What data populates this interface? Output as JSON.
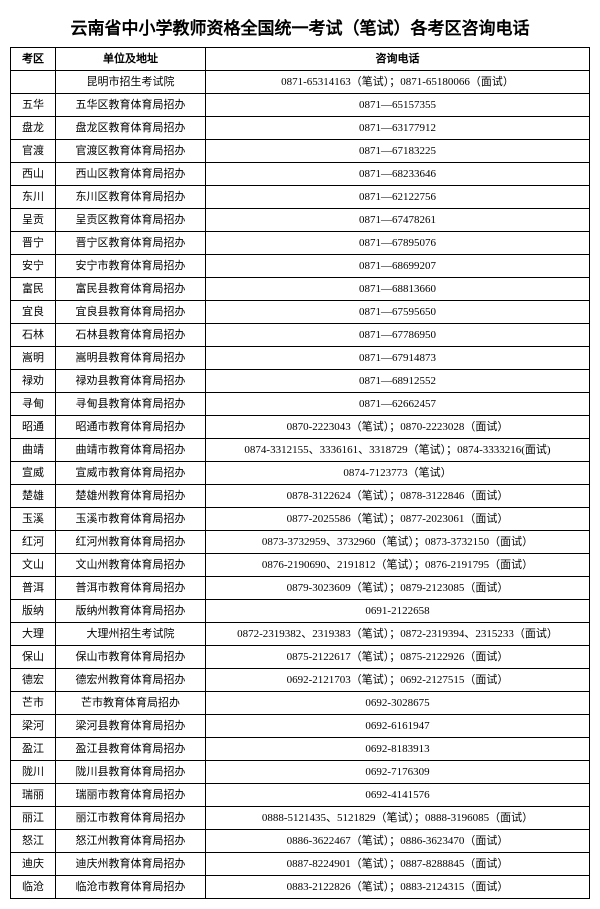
{
  "title": "云南省中小学教师资格全国统一考试（笔试）各考区咨询电话",
  "headers": {
    "col1": "考区",
    "col2": "单位及地址",
    "col3": "咨询电话"
  },
  "rows": [
    {
      "area": "",
      "unit": "昆明市招生考试院",
      "phone": "0871-65314163（笔试）；0871-65180066（面试）"
    },
    {
      "area": "五华",
      "unit": "五华区教育体育局招办",
      "phone": "0871—65157355"
    },
    {
      "area": "盘龙",
      "unit": "盘龙区教育体育局招办",
      "phone": "0871—63177912"
    },
    {
      "area": "官渡",
      "unit": "官渡区教育体育局招办",
      "phone": "0871—67183225"
    },
    {
      "area": "西山",
      "unit": "西山区教育体育局招办",
      "phone": "0871—68233646"
    },
    {
      "area": "东川",
      "unit": "东川区教育体育局招办",
      "phone": "0871—62122756"
    },
    {
      "area": "呈贡",
      "unit": "呈贡区教育体育局招办",
      "phone": "0871—67478261"
    },
    {
      "area": "晋宁",
      "unit": "晋宁区教育体育局招办",
      "phone": "0871—67895076"
    },
    {
      "area": "安宁",
      "unit": "安宁市教育体育局招办",
      "phone": "0871—68699207"
    },
    {
      "area": "富民",
      "unit": "富民县教育体育局招办",
      "phone": "0871—68813660"
    },
    {
      "area": "宜良",
      "unit": "宜良县教育体育局招办",
      "phone": "0871—67595650"
    },
    {
      "area": "石林",
      "unit": "石林县教育体育局招办",
      "phone": "0871—67786950"
    },
    {
      "area": "嵩明",
      "unit": "嵩明县教育体育局招办",
      "phone": "0871—67914873"
    },
    {
      "area": "禄劝",
      "unit": "禄劝县教育体育局招办",
      "phone": "0871—68912552"
    },
    {
      "area": "寻甸",
      "unit": "寻甸县教育体育局招办",
      "phone": "0871—62662457"
    },
    {
      "area": "昭通",
      "unit": "昭通市教育体育局招办",
      "phone": "0870-2223043（笔试）；0870-2223028（面试）"
    },
    {
      "area": "曲靖",
      "unit": "曲靖市教育体育局招办",
      "phone": "0874-3312155、3336161、3318729（笔试）；0874-3333216(面试)"
    },
    {
      "area": "宣威",
      "unit": "宣威市教育体育局招办",
      "phone": "0874-7123773（笔试）"
    },
    {
      "area": "楚雄",
      "unit": "楚雄州教育体育局招办",
      "phone": "0878-3122624（笔试）；0878-3122846（面试）"
    },
    {
      "area": "玉溪",
      "unit": "玉溪市教育体育局招办",
      "phone": "0877-2025586（笔试）；0877-2023061（面试）"
    },
    {
      "area": "红河",
      "unit": "红河州教育体育局招办",
      "phone": "0873-3732959、3732960（笔试）；0873-3732150（面试）"
    },
    {
      "area": "文山",
      "unit": "文山州教育体育局招办",
      "phone": "0876-2190690、2191812（笔试）；0876-2191795（面试）"
    },
    {
      "area": "普洱",
      "unit": "普洱市教育体育局招办",
      "phone": "0879-3023609（笔试）；0879-2123085（面试）"
    },
    {
      "area": "版纳",
      "unit": "版纳州教育体育局招办",
      "phone": "0691-2122658"
    },
    {
      "area": "大理",
      "unit": "大理州招生考试院",
      "phone": "0872-2319382、2319383（笔试）；0872-2319394、2315233（面试）"
    },
    {
      "area": "保山",
      "unit": "保山市教育体育局招办",
      "phone": "0875-2122617（笔试）；0875-2122926（面试）"
    },
    {
      "area": "德宏",
      "unit": "德宏州教育体育局招办",
      "phone": "0692-2121703（笔试）；0692-2127515（面试）"
    },
    {
      "area": "芒市",
      "unit": "芒市教育体育局招办",
      "phone": "0692-3028675"
    },
    {
      "area": "梁河",
      "unit": "梁河县教育体育局招办",
      "phone": "0692-6161947"
    },
    {
      "area": "盈江",
      "unit": "盈江县教育体育局招办",
      "phone": "0692-8183913"
    },
    {
      "area": "陇川",
      "unit": "陇川县教育体育局招办",
      "phone": "0692-7176309"
    },
    {
      "area": "瑞丽",
      "unit": "瑞丽市教育体育局招办",
      "phone": "0692-4141576"
    },
    {
      "area": "丽江",
      "unit": "丽江市教育体育局招办",
      "phone": "0888-5121435、5121829（笔试）；0888-3196085（面试）"
    },
    {
      "area": "怒江",
      "unit": "怒江州教育体育局招办",
      "phone": "0886-3622467（笔试）；0886-3623470（面试）"
    },
    {
      "area": "迪庆",
      "unit": "迪庆州教育体育局招办",
      "phone": "0887-8224901（笔试）；0887-8288845（面试）"
    },
    {
      "area": "临沧",
      "unit": "临沧市教育体育局招办",
      "phone": "0883-2122826（笔试）；0883-2124315（面试）"
    }
  ]
}
